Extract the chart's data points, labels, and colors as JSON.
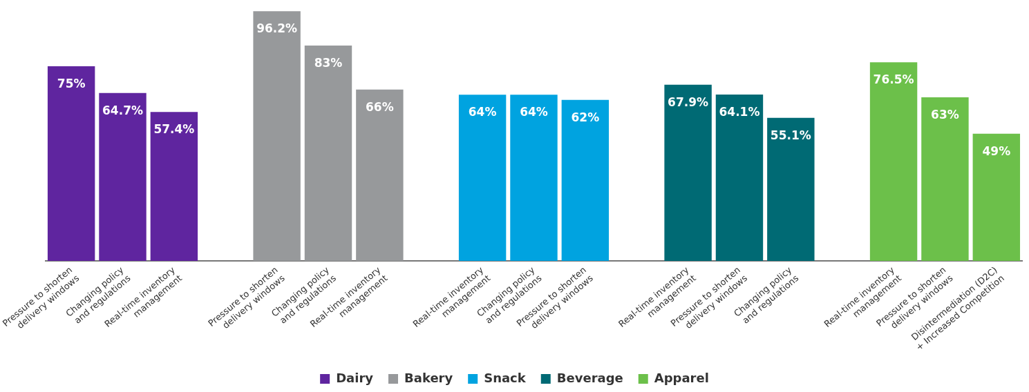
{
  "chart_data": {
    "type": "bar",
    "categories": [
      "Pressure to shorten\ndelivery windows",
      "Changing policy\nand regulations",
      "Real-time inventory\nmanagement",
      "Pressure to shorten\ndelivery windows",
      "Changing policy\nand regulations",
      "Real-time inventory\nmanagement",
      "Real-time inventory\nmanagement",
      "Changing policy\nand regulations",
      "Pressure to shorten\ndelivery windows",
      "Real-time inventory\nmanagement",
      "Pressure to shorten\ndelivery windows",
      "Changing policy\nand regulations",
      "Real-time inventory\nmanagement",
      "Pressure to shorten\ndelivery windows",
      "Disintermediation (D2C)\n+ Increased Competition"
    ],
    "series": [
      {
        "name": "Dairy",
        "color": "#5f259f",
        "values": [
          75,
          64.7,
          57.4,
          null,
          null,
          null,
          null,
          null,
          null,
          null,
          null,
          null,
          null,
          null,
          null
        ],
        "value_labels": [
          "75%",
          "64.7%",
          "57.4%",
          null,
          null,
          null,
          null,
          null,
          null,
          null,
          null,
          null,
          null,
          null,
          null
        ]
      },
      {
        "name": "Bakery",
        "color": "#97999b",
        "values": [
          null,
          null,
          null,
          96.2,
          83,
          66,
          null,
          null,
          null,
          null,
          null,
          null,
          null,
          null,
          null
        ],
        "value_labels": [
          null,
          null,
          null,
          "96.2%",
          "83%",
          "66%",
          null,
          null,
          null,
          null,
          null,
          null,
          null,
          null,
          null
        ]
      },
      {
        "name": "Snack",
        "color": "#00a3e0",
        "values": [
          null,
          null,
          null,
          null,
          null,
          null,
          64,
          64,
          62,
          null,
          null,
          null,
          null,
          null,
          null
        ],
        "value_labels": [
          null,
          null,
          null,
          null,
          null,
          null,
          "64%",
          "64%",
          "62%",
          null,
          null,
          null,
          null,
          null,
          null
        ]
      },
      {
        "name": "Beverage",
        "color": "#006a74",
        "values": [
          null,
          null,
          null,
          null,
          null,
          null,
          null,
          null,
          null,
          67.9,
          64.1,
          55.1,
          null,
          null,
          null
        ],
        "value_labels": [
          null,
          null,
          null,
          null,
          null,
          null,
          null,
          null,
          null,
          "67.9%",
          "64.1%",
          "55.1%",
          null,
          null,
          null
        ]
      },
      {
        "name": "Apparel",
        "color": "#6cc04a",
        "values": [
          null,
          null,
          null,
          null,
          null,
          null,
          null,
          null,
          null,
          null,
          null,
          null,
          76.5,
          63,
          49
        ],
        "value_labels": [
          null,
          null,
          null,
          null,
          null,
          null,
          null,
          null,
          null,
          null,
          null,
          null,
          "76.5%",
          "63%",
          "49%"
        ]
      }
    ],
    "legend": "bottom"
  }
}
